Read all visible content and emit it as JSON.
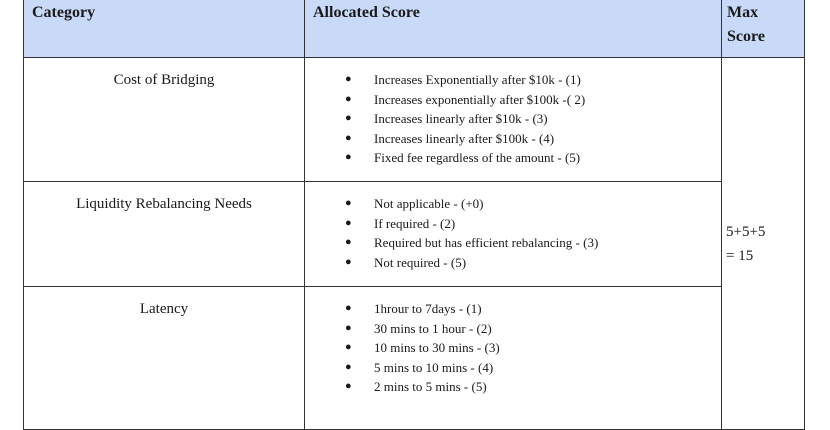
{
  "table": {
    "headers": {
      "category": "Category",
      "allocated_score": "Allocated Score",
      "max_score_line1": "Max",
      "max_score_line2": "Score"
    },
    "rows": [
      {
        "category": "Cost of Bridging",
        "items": [
          "Increases Exponentially after $10k - (1)",
          "Increases exponentially after $100k -( 2)",
          "Increases linearly after $10k - (3)",
          "Increases linearly after $100k - (4)",
          "Fixed fee regardless of the amount - (5)"
        ]
      },
      {
        "category": "Liquidity Rebalancing Needs",
        "items": [
          "Not applicable - (+0)",
          "If required - (2)",
          "Required but has efficient rebalancing - (3)",
          "Not required - (5)"
        ]
      },
      {
        "category": "Latency",
        "items": [
          "1hrour to 7days - (1)",
          "30 mins to 1 hour - (2)",
          "10 mins to 30 mins - (3)",
          "5 mins to 10 mins - (4)",
          "2 mins to 5 mins - (5)"
        ]
      }
    ],
    "max_score": {
      "line1": "5+5+5",
      "line2": "= 15"
    },
    "bullet_char": "●"
  }
}
